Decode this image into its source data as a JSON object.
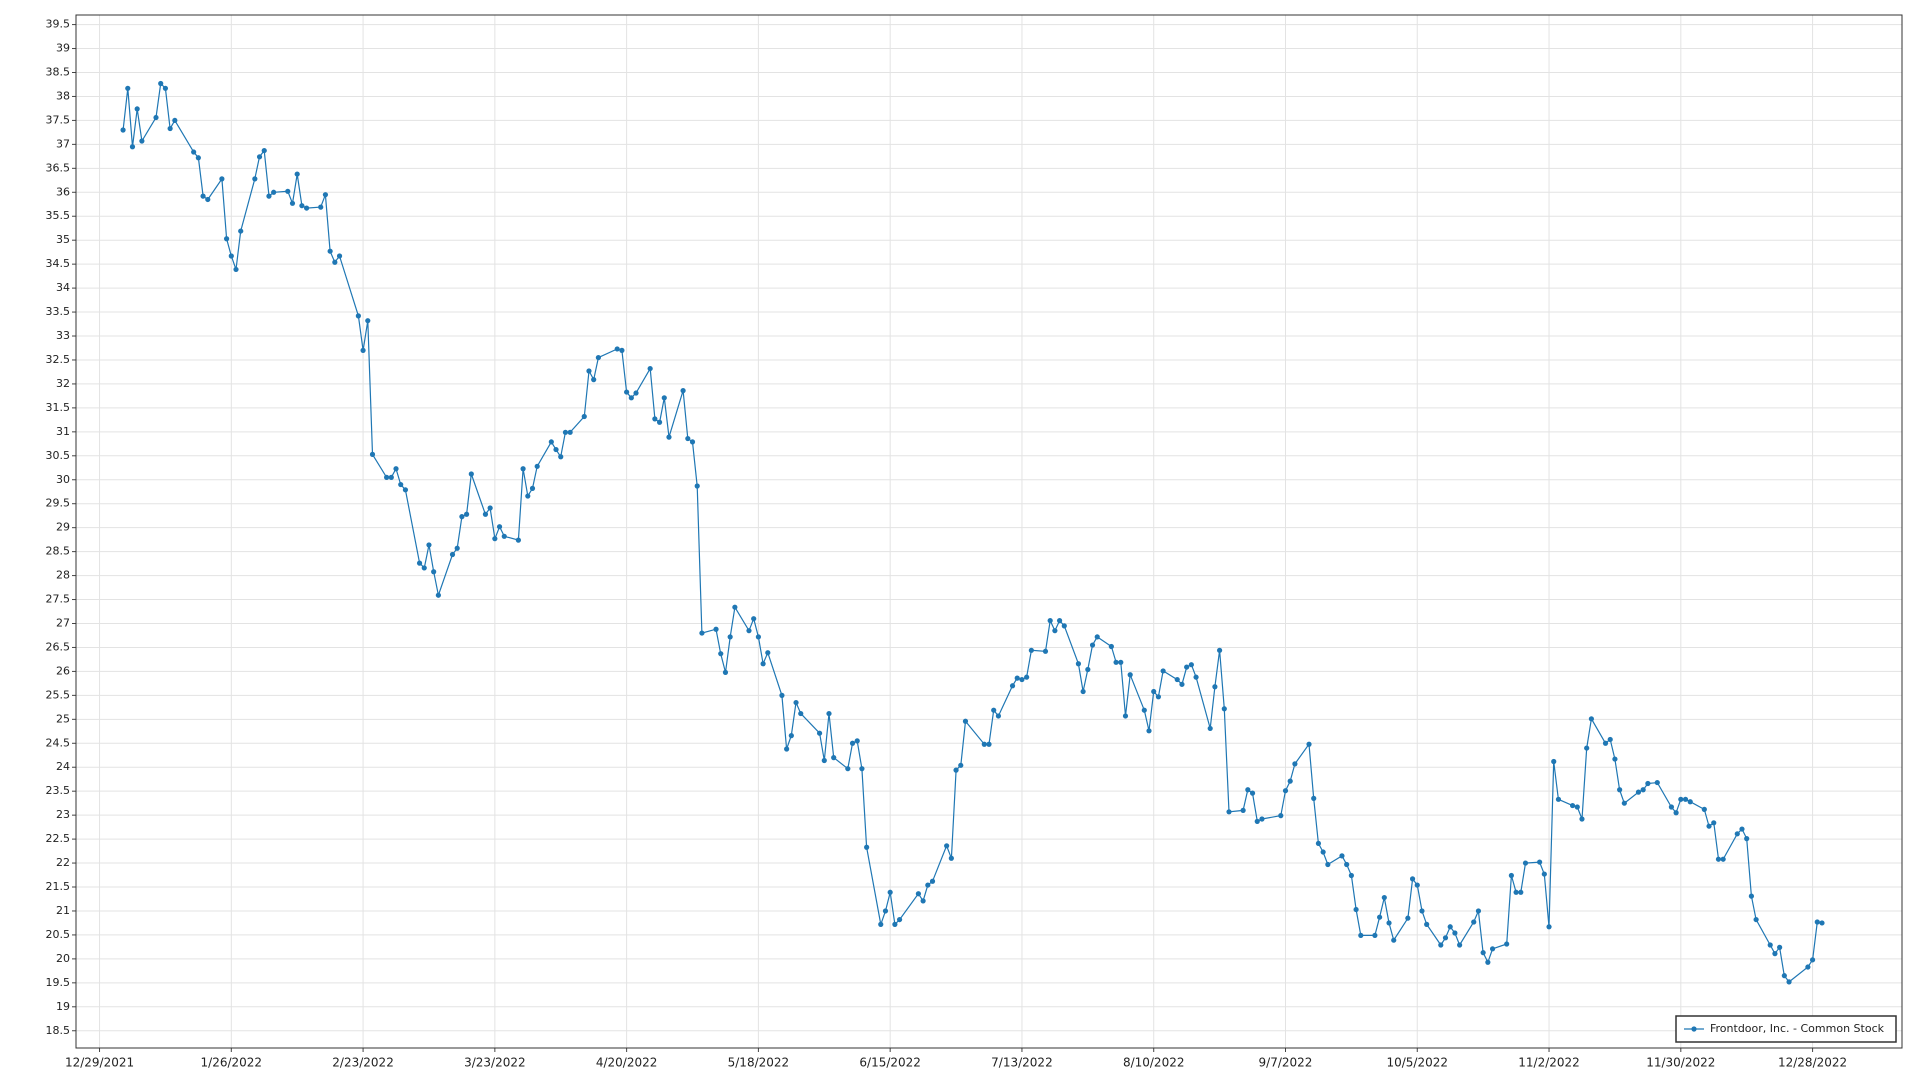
{
  "chart_data": {
    "type": "line",
    "x": [
      "1/3/2022",
      "1/4/2022",
      "1/5/2022",
      "1/6/2022",
      "1/7/2022",
      "1/10/2022",
      "1/11/2022",
      "1/12/2022",
      "1/13/2022",
      "1/14/2022",
      "1/18/2022",
      "1/19/2022",
      "1/20/2022",
      "1/21/2022",
      "1/24/2022",
      "1/25/2022",
      "1/26/2022",
      "1/27/2022",
      "1/28/2022",
      "1/31/2022",
      "2/1/2022",
      "2/2/2022",
      "2/3/2022",
      "2/4/2022",
      "2/7/2022",
      "2/8/2022",
      "2/9/2022",
      "2/10/2022",
      "2/11/2022",
      "2/14/2022",
      "2/15/2022",
      "2/16/2022",
      "2/17/2022",
      "2/18/2022",
      "2/22/2022",
      "2/23/2022",
      "2/24/2022",
      "2/25/2022",
      "2/28/2022",
      "3/1/2022",
      "3/2/2022",
      "3/3/2022",
      "3/4/2022",
      "3/7/2022",
      "3/8/2022",
      "3/9/2022",
      "3/10/2022",
      "3/11/2022",
      "3/14/2022",
      "3/15/2022",
      "3/16/2022",
      "3/17/2022",
      "3/18/2022",
      "3/21/2022",
      "3/22/2022",
      "3/23/2022",
      "3/24/2022",
      "3/25/2022",
      "3/28/2022",
      "3/29/2022",
      "3/30/2022",
      "3/31/2022",
      "4/1/2022",
      "4/4/2022",
      "4/5/2022",
      "4/6/2022",
      "4/7/2022",
      "4/8/2022",
      "4/11/2022",
      "4/12/2022",
      "4/13/2022",
      "4/14/2022",
      "4/18/2022",
      "4/19/2022",
      "4/20/2022",
      "4/21/2022",
      "4/22/2022",
      "4/25/2022",
      "4/26/2022",
      "4/27/2022",
      "4/28/2022",
      "4/29/2022",
      "5/2/2022",
      "5/3/2022",
      "5/4/2022",
      "5/5/2022",
      "5/6/2022",
      "5/9/2022",
      "5/10/2022",
      "5/11/2022",
      "5/12/2022",
      "5/13/2022",
      "5/16/2022",
      "5/17/2022",
      "5/18/2022",
      "5/19/2022",
      "5/20/2022",
      "5/23/2022",
      "5/24/2022",
      "5/25/2022",
      "5/26/2022",
      "5/27/2022",
      "5/31/2022",
      "6/1/2022",
      "6/2/2022",
      "6/3/2022",
      "6/6/2022",
      "6/7/2022",
      "6/8/2022",
      "6/9/2022",
      "6/10/2022",
      "6/13/2022",
      "6/14/2022",
      "6/15/2022",
      "6/16/2022",
      "6/17/2022",
      "6/21/2022",
      "6/22/2022",
      "6/23/2022",
      "6/24/2022",
      "6/27/2022",
      "6/28/2022",
      "6/29/2022",
      "6/30/2022",
      "7/1/2022",
      "7/5/2022",
      "7/6/2022",
      "7/7/2022",
      "7/8/2022",
      "7/11/2022",
      "7/12/2022",
      "7/13/2022",
      "7/14/2022",
      "7/15/2022",
      "7/18/2022",
      "7/19/2022",
      "7/20/2022",
      "7/21/2022",
      "7/22/2022",
      "7/25/2022",
      "7/26/2022",
      "7/27/2022",
      "7/28/2022",
      "7/29/2022",
      "8/1/2022",
      "8/2/2022",
      "8/3/2022",
      "8/4/2022",
      "8/5/2022",
      "8/8/2022",
      "8/9/2022",
      "8/10/2022",
      "8/11/2022",
      "8/12/2022",
      "8/15/2022",
      "8/16/2022",
      "8/17/2022",
      "8/18/2022",
      "8/19/2022",
      "8/22/2022",
      "8/23/2022",
      "8/24/2022",
      "8/25/2022",
      "8/26/2022",
      "8/29/2022",
      "8/30/2022",
      "8/31/2022",
      "9/1/2022",
      "9/2/2022",
      "9/6/2022",
      "9/7/2022",
      "9/8/2022",
      "9/9/2022",
      "9/12/2022",
      "9/13/2022",
      "9/14/2022",
      "9/15/2022",
      "9/16/2022",
      "9/19/2022",
      "9/20/2022",
      "9/21/2022",
      "9/22/2022",
      "9/23/2022",
      "9/26/2022",
      "9/27/2022",
      "9/28/2022",
      "9/29/2022",
      "9/30/2022",
      "10/3/2022",
      "10/4/2022",
      "10/5/2022",
      "10/6/2022",
      "10/7/2022",
      "10/10/2022",
      "10/11/2022",
      "10/12/2022",
      "10/13/2022",
      "10/14/2022",
      "10/17/2022",
      "10/18/2022",
      "10/19/2022",
      "10/20/2022",
      "10/21/2022",
      "10/24/2022",
      "10/25/2022",
      "10/26/2022",
      "10/27/2022",
      "10/28/2022",
      "10/31/2022",
      "11/1/2022",
      "11/2/2022",
      "11/3/2022",
      "11/4/2022",
      "11/7/2022",
      "11/8/2022",
      "11/9/2022",
      "11/10/2022",
      "11/11/2022",
      "11/14/2022",
      "11/15/2022",
      "11/16/2022",
      "11/17/2022",
      "11/18/2022",
      "11/21/2022",
      "11/22/2022",
      "11/23/2022",
      "11/25/2022",
      "11/28/2022",
      "11/29/2022",
      "11/30/2022",
      "12/1/2022",
      "12/2/2022",
      "12/5/2022",
      "12/6/2022",
      "12/7/2022",
      "12/8/2022",
      "12/9/2022",
      "12/12/2022",
      "12/13/2022",
      "12/14/2022",
      "12/15/2022",
      "12/16/2022",
      "12/19/2022",
      "12/20/2022",
      "12/21/2022",
      "12/22/2022",
      "12/23/2022",
      "12/27/2022",
      "12/28/2022",
      "12/29/2022",
      "12/30/2022"
    ],
    "series": [
      {
        "name": "Frontdoor, Inc. - Common Stock",
        "color": "#1f77b4",
        "values": [
          37.3,
          38.17,
          36.95,
          37.74,
          37.07,
          37.56,
          38.27,
          38.17,
          37.33,
          37.5,
          36.84,
          36.72,
          35.92,
          35.85,
          36.28,
          35.03,
          34.67,
          34.39,
          35.19,
          36.28,
          36.74,
          36.87,
          35.92,
          36.0,
          36.02,
          35.77,
          36.38,
          35.72,
          35.67,
          35.69,
          35.95,
          34.77,
          34.54,
          34.67,
          33.42,
          32.7,
          33.32,
          30.53,
          30.05,
          30.05,
          30.23,
          29.9,
          29.79,
          28.26,
          28.16,
          28.64,
          28.08,
          27.59,
          28.44,
          28.57,
          29.23,
          29.28,
          30.12,
          29.28,
          29.41,
          28.77,
          29.02,
          28.82,
          28.74,
          30.23,
          29.66,
          29.82,
          30.28,
          30.79,
          30.63,
          30.48,
          30.99,
          30.99,
          31.32,
          32.27,
          32.09,
          32.55,
          32.73,
          32.7,
          31.83,
          31.71,
          31.81,
          32.32,
          31.27,
          31.2,
          31.71,
          30.89,
          31.86,
          30.86,
          30.79,
          29.87,
          26.8,
          26.88,
          26.37,
          25.98,
          26.72,
          27.34,
          26.85,
          27.1,
          26.72,
          26.16,
          26.39,
          25.5,
          24.38,
          24.66,
          25.35,
          25.12,
          24.71,
          24.14,
          25.12,
          24.2,
          23.97,
          24.5,
          24.55,
          23.97,
          22.33,
          20.72,
          21.0,
          21.39,
          20.72,
          20.82,
          21.36,
          21.21,
          21.54,
          21.62,
          22.36,
          22.1,
          23.94,
          24.04,
          24.96,
          24.48,
          24.48,
          25.19,
          25.07,
          25.7,
          25.86,
          25.83,
          25.88,
          26.44,
          26.42,
          27.06,
          26.85,
          27.06,
          26.95,
          26.16,
          25.58,
          26.04,
          26.55,
          26.72,
          26.52,
          26.19,
          26.19,
          25.07,
          25.93,
          25.19,
          24.76,
          25.58,
          25.47,
          26.01,
          25.83,
          25.73,
          26.09,
          26.14,
          25.88,
          24.81,
          25.68,
          26.44,
          25.22,
          23.07,
          23.1,
          23.53,
          23.46,
          22.87,
          22.92,
          22.99,
          23.51,
          23.71,
          24.07,
          24.48,
          23.35,
          22.41,
          22.23,
          21.97,
          22.15,
          21.97,
          21.74,
          21.03,
          20.49,
          20.49,
          20.87,
          21.28,
          20.75,
          20.39,
          20.85,
          21.67,
          21.54,
          21.0,
          20.72,
          20.29,
          20.44,
          20.67,
          20.54,
          20.29,
          20.77,
          21.0,
          20.13,
          19.93,
          20.21,
          20.31,
          21.74,
          21.39,
          21.39,
          22.0,
          22.02,
          21.77,
          20.67,
          24.12,
          23.33,
          23.2,
          23.17,
          22.92,
          24.4,
          25.01,
          24.5,
          24.58,
          24.17,
          23.53,
          23.25,
          23.48,
          23.53,
          23.66,
          23.68,
          23.17,
          23.05,
          23.33,
          23.33,
          23.28,
          23.12,
          22.77,
          22.84,
          22.08,
          22.08,
          22.61,
          22.71,
          22.51,
          21.31,
          20.82,
          20.29,
          20.11,
          20.24,
          19.65,
          19.52,
          19.83,
          19.98,
          20.77,
          20.75
        ]
      }
    ],
    "xlim": [
      "12/24/2021",
      "1/16/2023"
    ],
    "xticks": [
      "12/29/2021",
      "1/26/2022",
      "2/23/2022",
      "3/23/2022",
      "4/20/2022",
      "5/18/2022",
      "6/15/2022",
      "7/13/2022",
      "8/10/2022",
      "9/7/2022",
      "10/5/2022",
      "11/2/2022",
      "11/30/2022",
      "12/28/2022"
    ],
    "ylim": [
      18.14,
      39.7
    ],
    "yticks": [
      18.5,
      19,
      19.5,
      20,
      20.5,
      21,
      21.5,
      22,
      22.5,
      23,
      23.5,
      24,
      24.5,
      25,
      25.5,
      26,
      26.5,
      27,
      27.5,
      28,
      28.5,
      29,
      29.5,
      30,
      30.5,
      31,
      31.5,
      32,
      32.5,
      33,
      33.5,
      34,
      34.5,
      35,
      35.5,
      36,
      36.5,
      37,
      37.5,
      38,
      38.5,
      39,
      39.5
    ],
    "grid": true,
    "legend": "lower right"
  }
}
